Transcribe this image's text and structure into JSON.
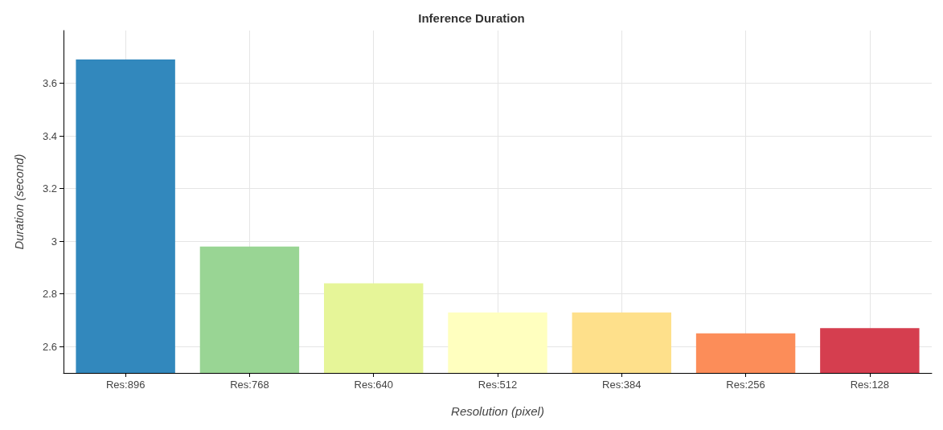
{
  "chart_data": {
    "type": "bar",
    "title": "Inference Duration",
    "xlabel": "Resolution (pixel)",
    "ylabel": "Duration (second)",
    "categories": [
      "Res:896",
      "Res:768",
      "Res:640",
      "Res:512",
      "Res:384",
      "Res:256",
      "Res:128"
    ],
    "values": [
      3.69,
      2.98,
      2.84,
      2.73,
      2.73,
      2.65,
      2.67
    ],
    "colors": [
      "#3288bd",
      "#99d594",
      "#e6f598",
      "#ffffbf",
      "#fee08b",
      "#fc8d59",
      "#d53e4f"
    ],
    "ylim": [
      2.5,
      3.8
    ],
    "yticks": [
      2.6,
      2.8,
      3,
      3.2,
      3.4,
      3.6
    ],
    "grid": true
  }
}
